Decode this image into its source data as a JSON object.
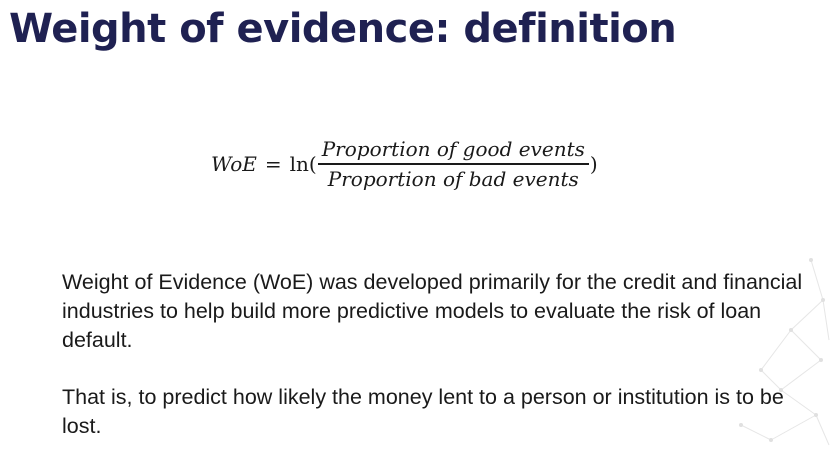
{
  "slide": {
    "title": "Weight of evidence: definition",
    "formula": {
      "lhs": "WoE",
      "equals": "=",
      "func": "ln(",
      "numerator": "Proportion of good events",
      "denominator": "Proportion of bad events",
      "close": ")"
    },
    "paragraphs": [
      "Weight of Evidence (WoE) was developed primarily for the credit and financial industries to help build more predictive models to evaluate the risk of loan default.",
      "That is, to predict how likely the money lent to a person or institution is to be lost."
    ]
  }
}
